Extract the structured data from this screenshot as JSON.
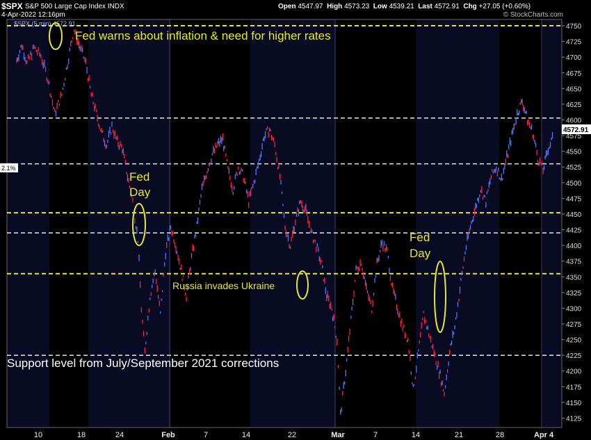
{
  "header": {
    "symbol": "$SPX",
    "name": "S&P 500 Large Cap Index",
    "exchange": "INDX",
    "date": "4-Apr-2022 12:16pm",
    "open_label": "Open",
    "open": "4547.97",
    "high_label": "High",
    "high": "4573.23",
    "low_label": "Low",
    "low": "4539.21",
    "last_label": "Last",
    "last": "4572.91",
    "chg_label": "Chg",
    "chg": "+27.05 (+0.60%)",
    "legend": "$SPX (5 min) 4572.91",
    "watermark": "© StockCharts.com"
  },
  "left_tag": "2.1%",
  "colors": {
    "background": "#000000",
    "plot_dark": "#000000",
    "plot_light": "#080b22",
    "up": "#4a78ff",
    "down": "#ff1f3a",
    "yellow_line": "#e8e82a",
    "white_line": "#d8d8d8",
    "annotation": "#e8e82a"
  },
  "chart_data": {
    "type": "line",
    "title": "$SPX S&P 500 Large Cap Index INDX",
    "ylim": [
      4110,
      4760
    ],
    "y_ticks": [
      4125,
      4150,
      4175,
      4200,
      4225,
      4250,
      4275,
      4300,
      4325,
      4350,
      4375,
      4400,
      4425,
      4450,
      4475,
      4500,
      4525,
      4550,
      4575,
      4600,
      4625,
      4650,
      4675,
      4700,
      4725,
      4750
    ],
    "x_ticks": [
      "10",
      "18",
      "24",
      "Feb",
      "7",
      "14",
      "22",
      "Mar",
      "7",
      "14",
      "21",
      "28",
      "Apr4"
    ],
    "last_value": "4572.91",
    "horizontal_levels": [
      {
        "value": 4750,
        "style": "yellow"
      },
      {
        "value": 4603,
        "style": "white"
      },
      {
        "value": 4530,
        "style": "white"
      },
      {
        "value": 4452,
        "style": "yellow"
      },
      {
        "value": 4420,
        "style": "white"
      },
      {
        "value": 4355,
        "style": "yellow"
      },
      {
        "value": 4225,
        "style": "white"
      }
    ],
    "series": [
      {
        "values": [
          [
            0,
            4695
          ],
          [
            3,
            4720
          ],
          [
            6,
            4690
          ],
          [
            10,
            4715
          ],
          [
            14,
            4702
          ],
          [
            18,
            4665
          ],
          [
            22,
            4610
          ],
          [
            26,
            4640
          ],
          [
            30,
            4700
          ],
          [
            33,
            4745
          ],
          [
            36,
            4720
          ],
          [
            40,
            4690
          ],
          [
            43,
            4640
          ],
          [
            46,
            4610
          ],
          [
            49,
            4580
          ],
          [
            52,
            4560
          ],
          [
            55,
            4590
          ],
          [
            58,
            4565
          ],
          [
            61,
            4555
          ],
          [
            64,
            4510
          ],
          [
            67,
            4470
          ],
          [
            70,
            4410
          ],
          [
            72,
            4300
          ],
          [
            74,
            4230
          ],
          [
            77,
            4320
          ],
          [
            80,
            4360
          ],
          [
            83,
            4290
          ],
          [
            86,
            4390
          ],
          [
            89,
            4430
          ],
          [
            92,
            4400
          ],
          [
            95,
            4360
          ],
          [
            98,
            4320
          ],
          [
            101,
            4380
          ],
          [
            104,
            4430
          ],
          [
            107,
            4490
          ],
          [
            110,
            4520
          ],
          [
            113,
            4545
          ],
          [
            116,
            4560
          ],
          [
            119,
            4570
          ],
          [
            122,
            4520
          ],
          [
            125,
            4490
          ],
          [
            128,
            4525
          ],
          [
            131,
            4510
          ],
          [
            134,
            4470
          ],
          [
            137,
            4500
          ],
          [
            140,
            4535
          ],
          [
            143,
            4575
          ],
          [
            146,
            4585
          ],
          [
            149,
            4560
          ],
          [
            152,
            4510
          ],
          [
            155,
            4430
          ],
          [
            158,
            4400
          ],
          [
            161,
            4440
          ],
          [
            164,
            4470
          ],
          [
            167,
            4455
          ],
          [
            170,
            4420
          ],
          [
            173,
            4400
          ],
          [
            176,
            4370
          ],
          [
            179,
            4320
          ],
          [
            182,
            4300
          ],
          [
            185,
            4250
          ],
          [
            187,
            4130
          ],
          [
            190,
            4200
          ],
          [
            193,
            4280
          ],
          [
            196,
            4360
          ],
          [
            199,
            4375
          ],
          [
            202,
            4330
          ],
          [
            205,
            4300
          ],
          [
            208,
            4370
          ],
          [
            211,
            4405
          ],
          [
            214,
            4390
          ],
          [
            217,
            4330
          ],
          [
            220,
            4300
          ],
          [
            223,
            4270
          ],
          [
            226,
            4250
          ],
          [
            229,
            4170
          ],
          [
            232,
            4230
          ],
          [
            235,
            4290
          ],
          [
            238,
            4260
          ],
          [
            241,
            4230
          ],
          [
            244,
            4200
          ],
          [
            247,
            4165
          ],
          [
            250,
            4230
          ],
          [
            253,
            4270
          ],
          [
            256,
            4330
          ],
          [
            259,
            4390
          ],
          [
            262,
            4430
          ],
          [
            265,
            4460
          ],
          [
            268,
            4490
          ],
          [
            271,
            4470
          ],
          [
            274,
            4510
          ],
          [
            277,
            4525
          ],
          [
            280,
            4505
          ],
          [
            283,
            4540
          ],
          [
            286,
            4575
          ],
          [
            289,
            4610
          ],
          [
            292,
            4630
          ],
          [
            295,
            4600
          ],
          [
            298,
            4580
          ],
          [
            301,
            4540
          ],
          [
            304,
            4520
          ],
          [
            307,
            4555
          ],
          [
            310,
            4572.91
          ]
        ]
      }
    ]
  },
  "annotations": {
    "fed_warns": "Fed warns about inflation & need for higher rates",
    "fed_day_1a": "Fed",
    "fed_day_1b": "Day",
    "russia": "Russia invades Ukraine",
    "fed_day_2a": "Fed",
    "fed_day_2b": "Day",
    "support": "Support level from July/September 2021 corrections"
  }
}
